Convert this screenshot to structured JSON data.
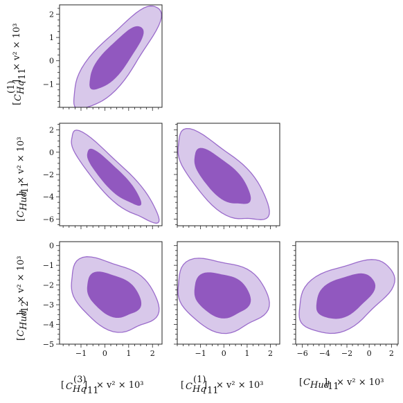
{
  "chart_data": {
    "type": "corner-contour",
    "colors": {
      "inner": "#9158BF",
      "outer": "#D8C8EA",
      "edge": "#9A6BCB"
    },
    "parameters": [
      {
        "id": "CHq3_11",
        "label": "[C_Hq^(3)]_11 × v² × 10³",
        "range": [
          -1.9,
          2.4
        ],
        "ticks": [
          -1,
          0,
          1,
          2
        ]
      },
      {
        "id": "CHq1_11",
        "label": "[C_Hq^(1)]_11 × v² × 10³",
        "range": [
          -2.0,
          2.4
        ],
        "ticks": [
          -1,
          0,
          1,
          2
        ]
      },
      {
        "id": "CHud_11",
        "label": "[C_Hud]_11 × v² × 10³",
        "range": [
          -6.6,
          2.6
        ],
        "ticks": [
          -6,
          -4,
          -2,
          0,
          2
        ]
      },
      {
        "id": "CHud_12",
        "label": "[C_Hud]_12 × v² × 10³",
        "range": [
          -5.0,
          0.2
        ],
        "ticks": [
          -5,
          -4,
          -3,
          -2,
          -1,
          0
        ]
      }
    ],
    "x_tick_labels": {
      "col0": [
        "−1",
        "0",
        "1",
        "2"
      ],
      "col1": [
        "−1",
        "0",
        "1",
        "2"
      ],
      "col2": [
        "−6",
        "−4",
        "−2",
        "0",
        "2"
      ]
    },
    "y_tick_labels": {
      "row0": [
        "−1",
        "0",
        "1",
        "2"
      ],
      "row1": [
        "−6",
        "−4",
        "−2",
        "0",
        "2"
      ],
      "row2": [
        "−5",
        "−4",
        "−3",
        "−2",
        "−1",
        "0"
      ]
    },
    "panels": [
      {
        "x": "CHq3_11",
        "y": "CHq1_11",
        "center": [
          0.45,
          0.1
        ],
        "sigma": [
          0.75,
          0.9
        ],
        "rho": 0.82
      },
      {
        "x": "CHq3_11",
        "y": "CHud_11",
        "center": [
          0.35,
          -2.3
        ],
        "sigma": [
          0.75,
          1.65
        ],
        "rho": -0.88
      },
      {
        "x": "CHq1_11",
        "y": "CHud_11",
        "center": [
          -0.1,
          -2.3
        ],
        "sigma": [
          0.8,
          1.65
        ],
        "rho": -0.7
      },
      {
        "x": "CHq3_11",
        "y": "CHud_12",
        "center": [
          0.35,
          -2.5
        ],
        "sigma": [
          0.75,
          0.75
        ],
        "rho": -0.35
      },
      {
        "x": "CHq1_11",
        "y": "CHud_12",
        "center": [
          -0.1,
          -2.5
        ],
        "sigma": [
          0.8,
          0.75
        ],
        "rho": -0.2
      },
      {
        "x": "CHud_11",
        "y": "CHud_12",
        "center": [
          -2.2,
          -2.55
        ],
        "sigma": [
          1.75,
          0.75
        ],
        "rho": 0.45
      }
    ],
    "levels": [
      "68%",
      "95%"
    ]
  }
}
